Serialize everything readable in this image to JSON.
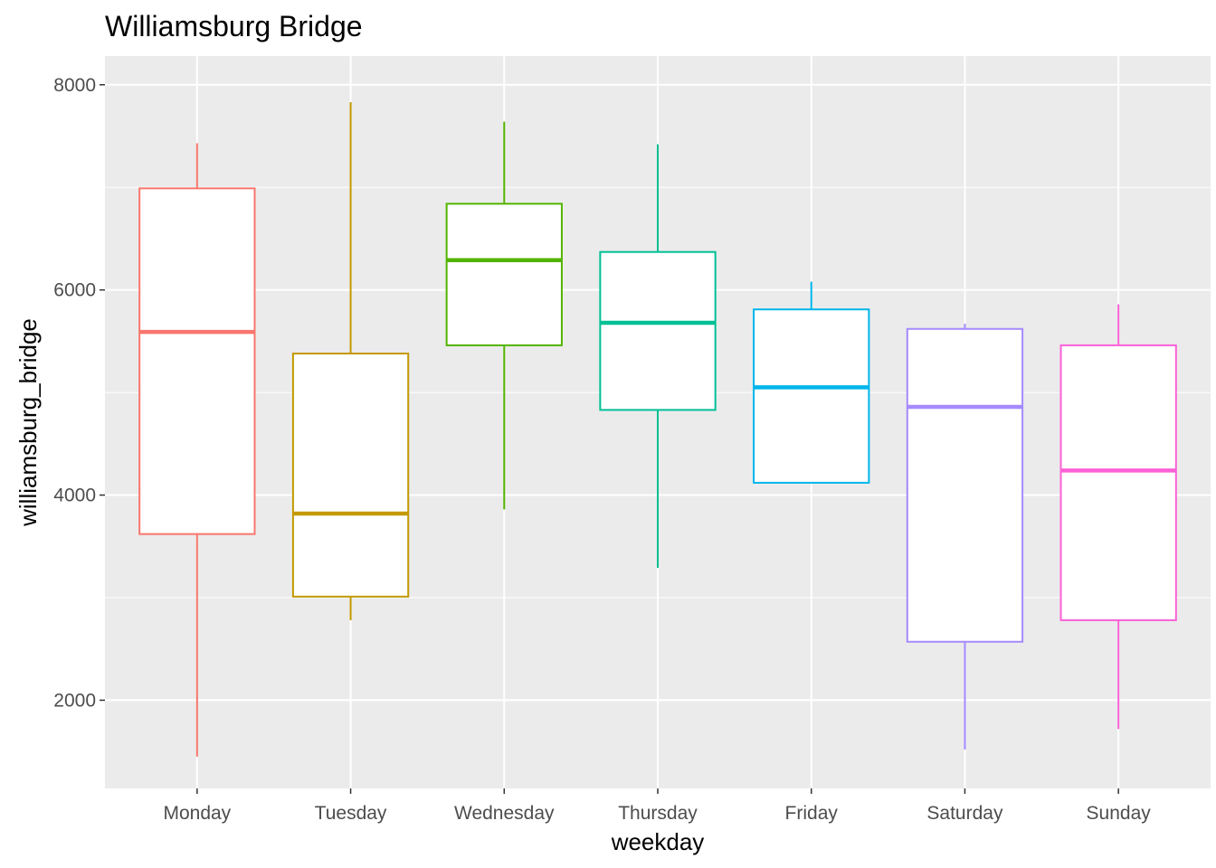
{
  "chart_data": {
    "type": "boxplot",
    "title": "Williamsburg Bridge",
    "xlabel": "weekday",
    "ylabel": "williamsburg_bridge",
    "ylim": [
      1140,
      8280
    ],
    "yticks": [
      2000,
      4000,
      6000,
      8000
    ],
    "grid": true,
    "legend": "none",
    "categories": [
      "Monday",
      "Tuesday",
      "Wednesday",
      "Thursday",
      "Friday",
      "Saturday",
      "Sunday"
    ],
    "boxes": [
      {
        "category": "Monday",
        "color": "#F8766D",
        "min": 1450,
        "q1": 3620,
        "median": 5590,
        "q3": 6990,
        "max": 7430
      },
      {
        "category": "Tuesday",
        "color": "#C49A00",
        "min": 2780,
        "q1": 3010,
        "median": 3820,
        "q3": 5380,
        "max": 7830
      },
      {
        "category": "Wednesday",
        "color": "#53B400",
        "min": 3860,
        "q1": 5460,
        "median": 6290,
        "q3": 6840,
        "max": 7640
      },
      {
        "category": "Thursday",
        "color": "#00C094",
        "min": 3290,
        "q1": 4830,
        "median": 5680,
        "q3": 6370,
        "max": 7420
      },
      {
        "category": "Friday",
        "color": "#00B6EB",
        "min": 4120,
        "q1": 4120,
        "median": 5050,
        "q3": 5810,
        "max": 6080
      },
      {
        "category": "Saturday",
        "color": "#A58AFF",
        "min": 1520,
        "q1": 2570,
        "median": 4860,
        "q3": 5620,
        "max": 5670
      },
      {
        "category": "Sunday",
        "color": "#FB61D7",
        "min": 1720,
        "q1": 2780,
        "median": 4240,
        "q3": 5460,
        "max": 5860
      }
    ]
  }
}
